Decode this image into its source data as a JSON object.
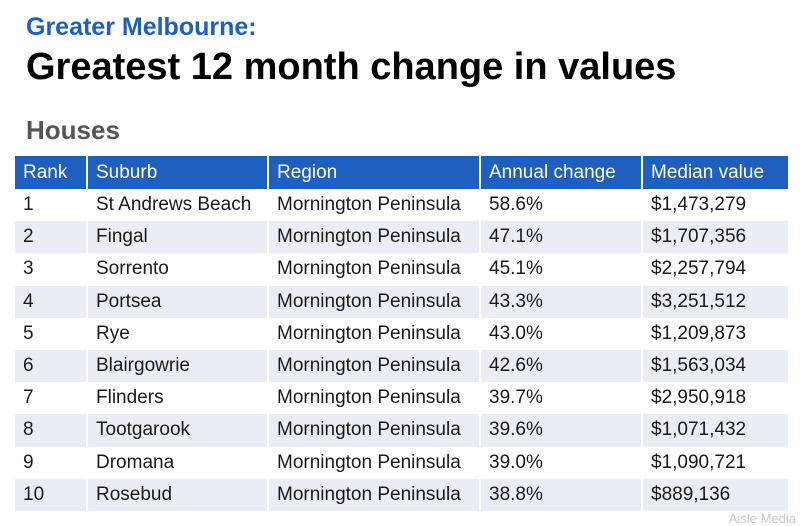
{
  "header": {
    "kicker": "Greater Melbourne:",
    "title": "Greatest 12 month change in values",
    "subtitle": "Houses"
  },
  "table": {
    "columns": [
      "Rank",
      "Suburb",
      "Region",
      "Annual change",
      "Median value"
    ],
    "rows": [
      [
        "1",
        "St Andrews Beach",
        "Mornington Peninsula",
        "58.6%",
        "$1,473,279"
      ],
      [
        "2",
        "Fingal",
        "Mornington Peninsula",
        "47.1%",
        "$1,707,356"
      ],
      [
        "3",
        "Sorrento",
        "Mornington Peninsula",
        "45.1%",
        "$2,257,794"
      ],
      [
        "4",
        "Portsea",
        "Mornington Peninsula",
        "43.3%",
        "$3,251,512"
      ],
      [
        "5",
        "Rye",
        "Mornington Peninsula",
        "43.0%",
        "$1,209,873"
      ],
      [
        "6",
        "Blairgowrie",
        "Mornington Peninsula",
        "42.6%",
        "$1,563,034"
      ],
      [
        "7",
        "Flinders",
        "Mornington Peninsula",
        "39.7%",
        "$2,950,918"
      ],
      [
        "8",
        "Tootgarook",
        "Mornington Peninsula",
        "39.6%",
        "$1,071,432"
      ],
      [
        "9",
        "Dromana",
        "Mornington Peninsula",
        "39.0%",
        "$1,090,721"
      ],
      [
        "10",
        "Rosebud",
        "Mornington Peninsula",
        "38.8%",
        "$889,136"
      ]
    ]
  },
  "watermark": "Aisle Media",
  "colors": {
    "accent": "#1f5fbf",
    "row_alt": "#eaeef4"
  }
}
